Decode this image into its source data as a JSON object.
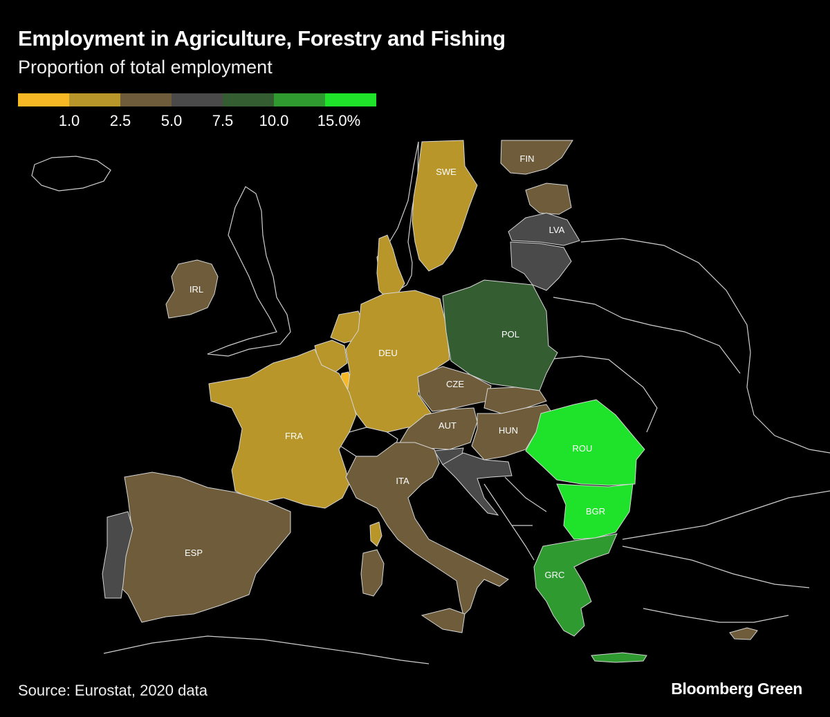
{
  "title": "Employment in Agriculture, Forestry and Fishing",
  "subtitle": "Proportion of total employment",
  "legend": {
    "colors": [
      "#f6b824",
      "#b8962a",
      "#6e5c3a",
      "#4a4a4a",
      "#345e32",
      "#2e9a30",
      "#1ee32a"
    ],
    "breaks": [
      "1.0",
      "2.5",
      "5.0",
      "7.5",
      "10.0",
      "15.0%"
    ]
  },
  "countries": {
    "SWE": "SWE",
    "FIN": "FIN",
    "LVA": "LVA",
    "IRL": "IRL",
    "POL": "POL",
    "DEU": "DEU",
    "CZE": "CZE",
    "FRA": "FRA",
    "AUT": "AUT",
    "HUN": "HUN",
    "ROU": "ROU",
    "ITA": "ITA",
    "BGR": "BGR",
    "ESP": "ESP",
    "GRC": "GRC"
  },
  "source": "Source: Eurostat, 2020 data",
  "brand": "Bloomberg Green"
}
